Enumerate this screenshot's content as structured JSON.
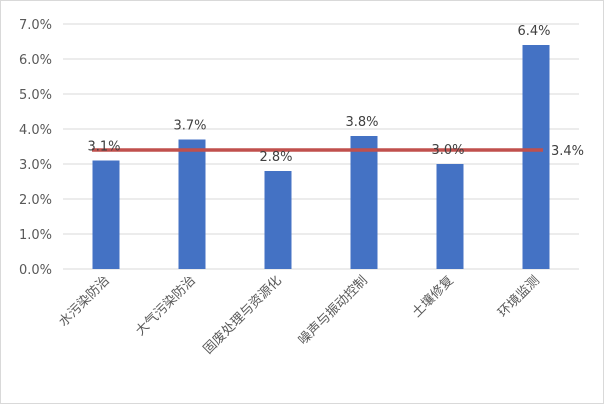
{
  "chart_data": {
    "type": "bar",
    "categories": [
      "水污染防治",
      "大气污染防治",
      "固废处理与资源化",
      "噪声与振动控制",
      "土壤修复",
      "环境监测"
    ],
    "values": [
      3.1,
      3.7,
      2.8,
      3.8,
      3.0,
      6.4
    ],
    "data_labels": [
      "3.1%",
      "3.7%",
      "2.8%",
      "3.8%",
      "3.0%",
      "6.4%"
    ],
    "average": {
      "value": 3.4,
      "label": "3.4%"
    },
    "yticks": [
      "0.0%",
      "1.0%",
      "2.0%",
      "3.0%",
      "4.0%",
      "5.0%",
      "6.0%",
      "7.0%"
    ],
    "ylim": [
      0,
      7
    ],
    "grid": true,
    "legend": "none",
    "title": "",
    "xlabel": "",
    "ylabel": "",
    "colors": {
      "bar": "#4472C4",
      "line": "#C0504D",
      "grid": "#d9d9d9"
    }
  }
}
